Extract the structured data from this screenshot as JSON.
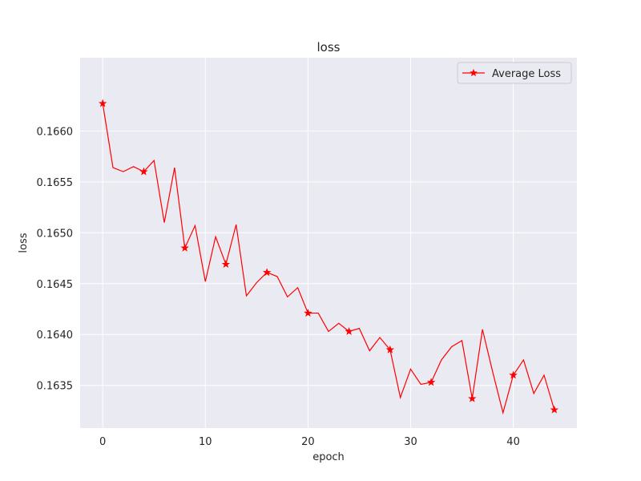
{
  "chart_data": {
    "type": "line",
    "title": "loss",
    "xlabel": "epoch",
    "ylabel": "loss",
    "xlim": [
      -2.2,
      46.2
    ],
    "ylim": [
      0.16308,
      0.16672
    ],
    "x_ticks": [
      0,
      10,
      20,
      30,
      40
    ],
    "y_ticks": [
      0.1635,
      0.164,
      0.1645,
      0.165,
      0.1655,
      0.166
    ],
    "y_tick_labels": [
      "0.1635",
      "0.1640",
      "0.1645",
      "0.1650",
      "0.1655",
      "0.1660"
    ],
    "grid": true,
    "legend_position": "top-right",
    "background_color": "#eaeaf2",
    "grid_color": "#ffffff",
    "series": [
      {
        "name": "Average Loss",
        "color": "#ff0000",
        "marker": "star",
        "marker_every": 4,
        "x": [
          0,
          1,
          2,
          3,
          4,
          5,
          6,
          7,
          8,
          9,
          10,
          11,
          12,
          13,
          14,
          15,
          16,
          17,
          18,
          19,
          20,
          21,
          22,
          23,
          24,
          25,
          26,
          27,
          28,
          29,
          30,
          31,
          32,
          33,
          34,
          35,
          36,
          37,
          38,
          39,
          40,
          41,
          42,
          43,
          44
        ],
        "y": [
          0.16627,
          0.16564,
          0.1656,
          0.16565,
          0.1656,
          0.16571,
          0.1651,
          0.16564,
          0.16485,
          0.16507,
          0.16452,
          0.16496,
          0.16469,
          0.16508,
          0.16438,
          0.16451,
          0.16461,
          0.16457,
          0.16437,
          0.16446,
          0.16421,
          0.16421,
          0.16403,
          0.16411,
          0.16403,
          0.16406,
          0.16384,
          0.16397,
          0.16385,
          0.16338,
          0.16366,
          0.16351,
          0.16353,
          0.16375,
          0.16388,
          0.16394,
          0.16337,
          0.16405,
          0.16363,
          0.16323,
          0.1636,
          0.16375,
          0.16342,
          0.1636,
          0.16326
        ]
      }
    ]
  }
}
